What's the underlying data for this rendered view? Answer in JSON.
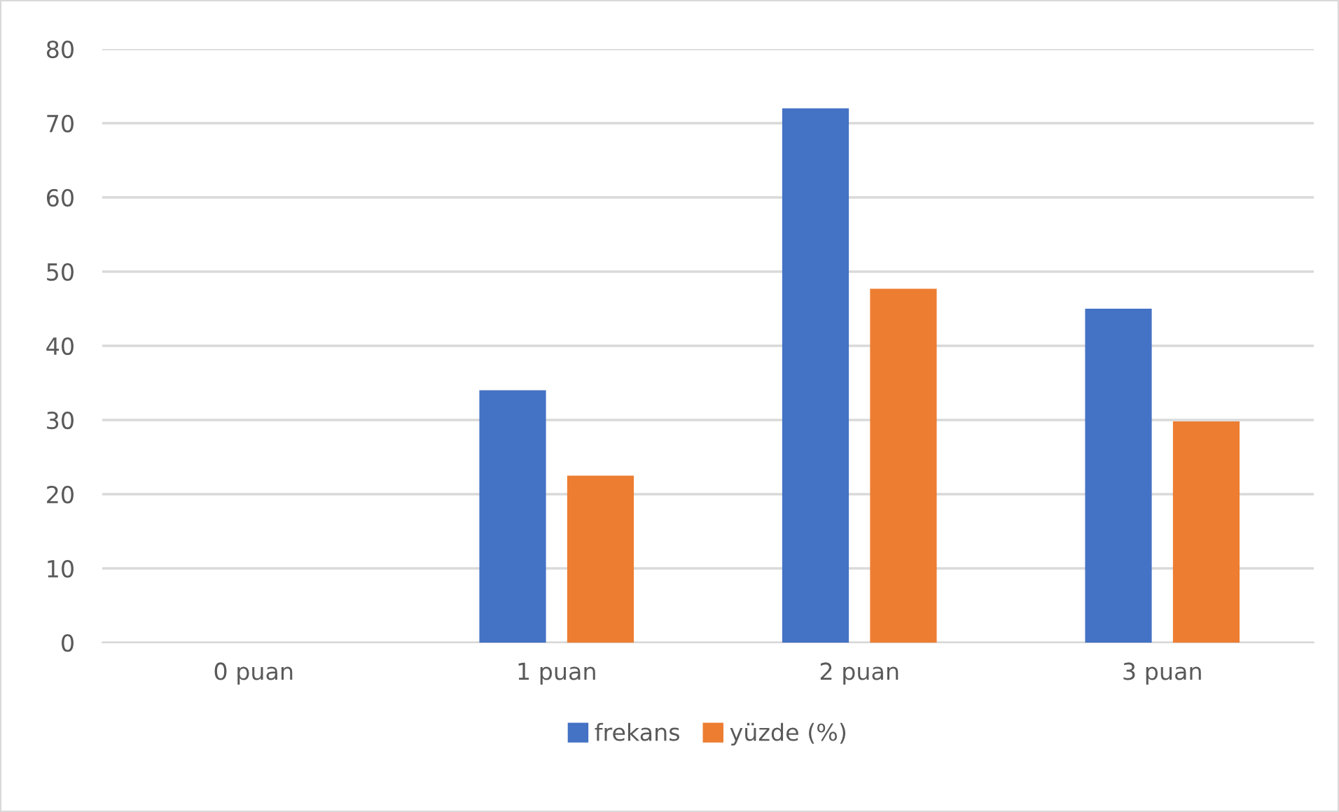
{
  "chart_data": {
    "type": "bar",
    "categories": [
      "0 puan",
      "1 puan",
      "2 puan",
      "3 puan"
    ],
    "series": [
      {
        "name": "frekans",
        "color": "#4472c4",
        "values": [
          0,
          34,
          72,
          45
        ]
      },
      {
        "name": "yüzde (%)",
        "color": "#ed7d31",
        "values": [
          0,
          22.5,
          47.7,
          29.8
        ]
      }
    ],
    "ylim": [
      0,
      80
    ],
    "yticks": [
      0,
      10,
      20,
      30,
      40,
      50,
      60,
      70,
      80
    ],
    "grid": "y",
    "legend": "bottom"
  }
}
